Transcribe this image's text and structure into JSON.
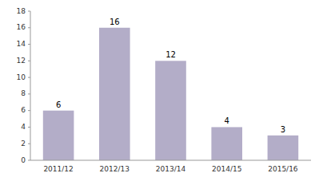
{
  "chart_data": {
    "type": "bar",
    "categories": [
      "2011/12",
      "2012/13",
      "2013/14",
      "2014/15",
      "2015/16"
    ],
    "values": [
      6,
      16,
      12,
      4,
      3
    ],
    "color": "#b3adc8",
    "ylim": [
      0,
      18
    ],
    "yticks": [
      0,
      2,
      4,
      6,
      8,
      10,
      12,
      14,
      16,
      18
    ],
    "grid": false,
    "data_labels": true
  }
}
